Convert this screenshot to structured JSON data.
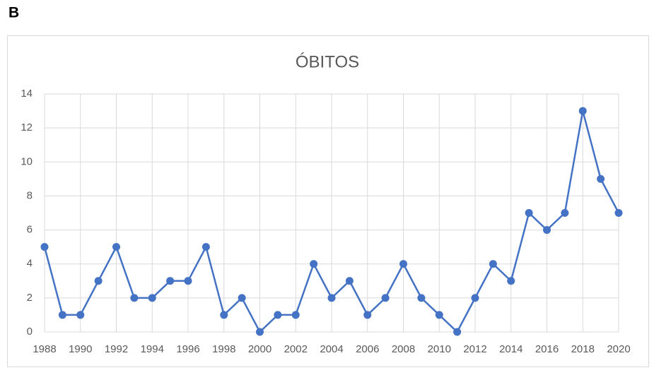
{
  "panel_label": "B",
  "chart_data": {
    "type": "line",
    "title": "ÓBITOS",
    "x": [
      1988,
      1989,
      1990,
      1991,
      1992,
      1993,
      1994,
      1995,
      1996,
      1997,
      1998,
      1999,
      2000,
      2001,
      2002,
      2003,
      2004,
      2005,
      2006,
      2007,
      2008,
      2009,
      2010,
      2011,
      2012,
      2013,
      2014,
      2015,
      2016,
      2017,
      2018,
      2019,
      2020
    ],
    "series": [
      {
        "color": "#4472c4",
        "values": [
          5,
          1,
          1,
          3,
          5,
          2,
          2,
          3,
          3,
          5,
          1,
          2,
          0,
          1,
          1,
          4,
          2,
          3,
          1,
          2,
          4,
          2,
          1,
          0,
          2,
          4,
          3,
          7,
          6,
          7,
          13,
          9,
          7
        ]
      }
    ],
    "xlim": [
      1988,
      2020
    ],
    "xticks": [
      1988,
      1990,
      1992,
      1994,
      1996,
      1998,
      2000,
      2002,
      2004,
      2006,
      2008,
      2010,
      2012,
      2014,
      2016,
      2018,
      2020
    ],
    "ylim": [
      0,
      14
    ],
    "yticks": [
      0,
      2,
      4,
      6,
      8,
      10,
      12,
      14
    ],
    "grid": true
  }
}
